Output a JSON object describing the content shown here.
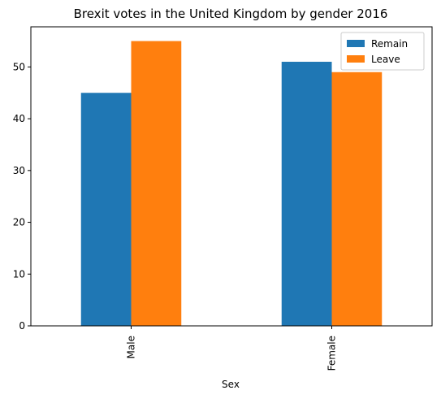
{
  "chart_data": {
    "type": "bar",
    "title": "Brexit votes in the United Kingdom by gender 2016",
    "xlabel": "Sex",
    "ylabel": "",
    "categories": [
      "Male",
      "Female"
    ],
    "series": [
      {
        "name": "Remain",
        "values": [
          45,
          51
        ],
        "color": "#1f77b4"
      },
      {
        "name": "Leave",
        "values": [
          55,
          49
        ],
        "color": "#ff7f0e"
      }
    ],
    "ylim": [
      0,
      57.75
    ],
    "yticks": [
      0,
      10,
      20,
      30,
      40,
      50
    ],
    "grid": false,
    "legend_position": "top-right"
  }
}
